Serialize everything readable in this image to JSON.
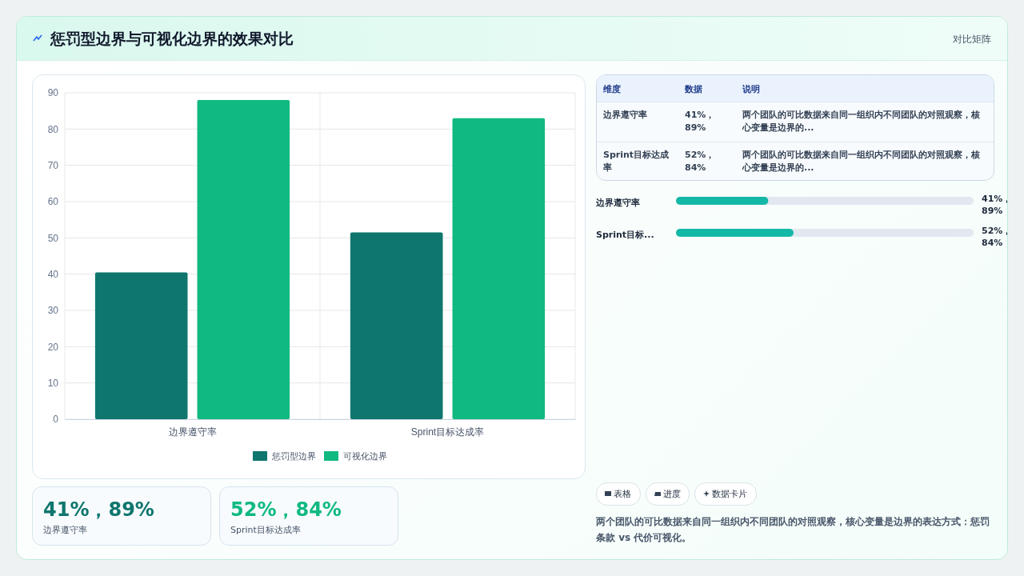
{
  "chart_data": [
    {
      "type": "bar",
      "title": "惩罚型边界与可视化边界的效果对比",
      "categories": [
        "边界遵守率",
        "Sprint目标达成率"
      ],
      "series": [
        {
          "name": "惩罚型边界",
          "color": "#0f766e",
          "values": [
            40.5,
            51.5
          ]
        },
        {
          "name": "可视化边界",
          "color": "#10b981",
          "values": [
            88,
            83
          ]
        }
      ],
      "ylim": [
        0,
        90
      ],
      "yticks": [
        0,
        10,
        20,
        30,
        40,
        50,
        60,
        70,
        80,
        90
      ],
      "grid": true,
      "legend": "bottom"
    },
    {
      "type": "other",
      "title": "对比矩阵",
      "annotations": [
        "维度",
        "数据",
        "说明",
        "边界遵守率",
        "41%，89%",
        "两个团队的可比数据来自同一组织内不同团队的对照观察，核心变量是边界的...",
        "Sprint目标达成率",
        "52%，84%",
        "两个团队的可比数据来自同一组织内不同团队的对照观察，核心变量是边界的..."
      ]
    },
    {
      "type": "other",
      "annotations": [
        "边界遵守率",
        "41%，89%",
        "Sprint目标...",
        "52%，84%"
      ]
    },
    {
      "type": "other",
      "annotations": [
        "41%，89%",
        "边界遵守率",
        "52%，84%",
        "Sprint目标达成率"
      ]
    },
    {
      "type": "other",
      "annotations": [
        "表格",
        "进度",
        "数据卡片",
        "两个团队的可比数据来自同一组织内不同团队的对照观察，核心变量是边界的表达方式：惩罚条款 vs 代价可视化。"
      ]
    }
  ]
}
